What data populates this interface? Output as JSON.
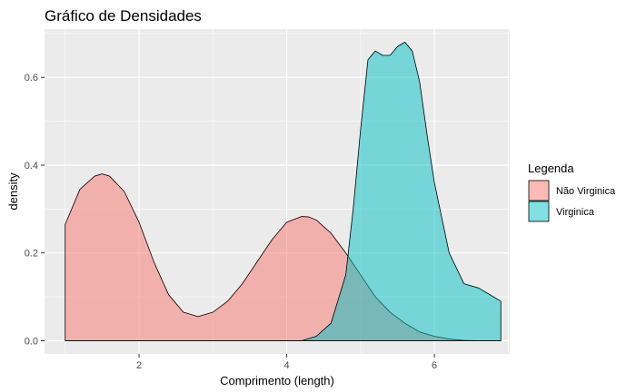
{
  "chart_data": {
    "type": "area",
    "title": "Gráfico de Densidades",
    "xlabel": "Comprimento (length)",
    "ylabel": "density",
    "xlim": [
      0.72,
      7.02
    ],
    "ylim": [
      -0.03,
      0.71
    ],
    "x_ticks": [
      2,
      4,
      6
    ],
    "y_ticks": [
      0.0,
      0.2,
      0.4,
      0.6
    ],
    "y_tick_labels": [
      "0.0",
      "0.2",
      "0.4",
      "0.6"
    ],
    "grid": true,
    "legend": {
      "title": "Legenda",
      "placement": "right",
      "items": [
        "Não Virginica",
        "Virginica"
      ]
    },
    "colors": {
      "nao_virginica": "#F8766D",
      "virginica": "#00BFC4",
      "panel": "#EBEBEB",
      "grid": "#FFFFFF"
    },
    "fill_opacity": 0.5,
    "series": [
      {
        "name": "Não Virginica",
        "x": [
          1.0,
          1.2,
          1.4,
          1.5,
          1.6,
          1.8,
          2.0,
          2.2,
          2.4,
          2.6,
          2.8,
          3.0,
          3.2,
          3.4,
          3.6,
          3.8,
          4.0,
          4.2,
          4.3,
          4.4,
          4.6,
          4.8,
          5.0,
          5.2,
          5.4,
          5.6,
          5.8,
          6.0,
          6.2,
          6.4,
          6.6,
          6.8,
          6.9
        ],
        "values": [
          0.265,
          0.345,
          0.375,
          0.38,
          0.375,
          0.34,
          0.27,
          0.18,
          0.105,
          0.065,
          0.055,
          0.065,
          0.09,
          0.13,
          0.18,
          0.23,
          0.27,
          0.283,
          0.282,
          0.275,
          0.245,
          0.2,
          0.15,
          0.1,
          0.065,
          0.04,
          0.02,
          0.01,
          0.004,
          0.001,
          0.0,
          0.0,
          0.0
        ]
      },
      {
        "name": "Virginica",
        "x": [
          1.0,
          4.2,
          4.4,
          4.6,
          4.8,
          4.9,
          5.0,
          5.1,
          5.2,
          5.3,
          5.4,
          5.5,
          5.6,
          5.7,
          5.8,
          5.9,
          6.0,
          6.2,
          6.4,
          6.6,
          6.8,
          6.9
        ],
        "values": [
          0.0,
          0.0,
          0.01,
          0.04,
          0.15,
          0.3,
          0.48,
          0.64,
          0.66,
          0.65,
          0.65,
          0.67,
          0.68,
          0.66,
          0.59,
          0.47,
          0.36,
          0.2,
          0.13,
          0.12,
          0.1,
          0.09
        ]
      }
    ]
  }
}
